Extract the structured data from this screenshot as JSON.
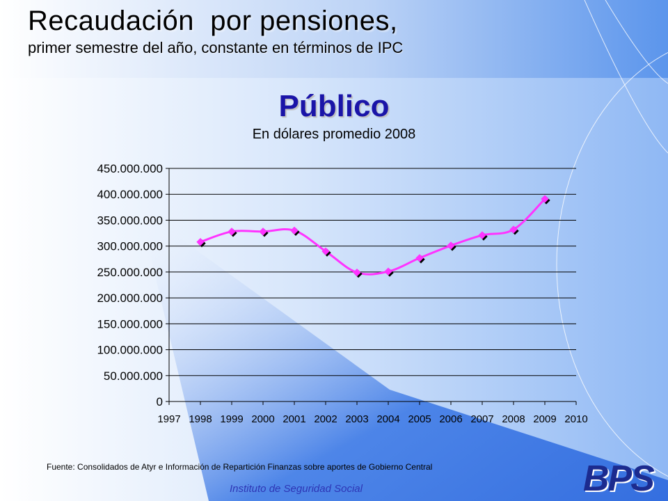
{
  "header": {
    "title": "Recaudación  por pensiones,",
    "subtitle": "primer semestre del año, constante en términos de IPC"
  },
  "section": {
    "title": "Público",
    "unit_label": "En dólares promedio 2008"
  },
  "chart_data": {
    "type": "line",
    "title": "",
    "xlabel": "",
    "ylabel": "",
    "x_ticks": [
      "1997",
      "1998",
      "1999",
      "2000",
      "2001",
      "2002",
      "2003",
      "2004",
      "2005",
      "2006",
      "2007",
      "2008",
      "2009",
      "2010"
    ],
    "y_ticks": [
      "0",
      "50.000.000",
      "100.000.000",
      "150.000.000",
      "200.000.000",
      "250.000.000",
      "300.000.000",
      "350.000.000",
      "400.000.000",
      "450.000.000"
    ],
    "ylim": [
      0,
      450000000
    ],
    "xlim": [
      1997,
      2010
    ],
    "grid": true,
    "legend": "none",
    "series": [
      {
        "x": [
          1998,
          1999,
          2000,
          2001,
          2002,
          2003,
          2004,
          2005,
          2006,
          2007,
          2008,
          2009
        ],
        "values": [
          308000000,
          328000000,
          328000000,
          330000000,
          290000000,
          249000000,
          251000000,
          277000000,
          301000000,
          321000000,
          332000000,
          391000000
        ],
        "color": "#ff33ff"
      }
    ]
  },
  "footer": {
    "source": "Fuente: Consolidados de Atyr e Información de Repartición Finanzas sobre aportes de Gobierno Central",
    "institution": "Instituto de Seguridad Social",
    "logo": "BPS"
  },
  "colors": {
    "title_accent": "#1a14a8",
    "line": "#ff33ff",
    "footer_text": "#2d35b5"
  }
}
